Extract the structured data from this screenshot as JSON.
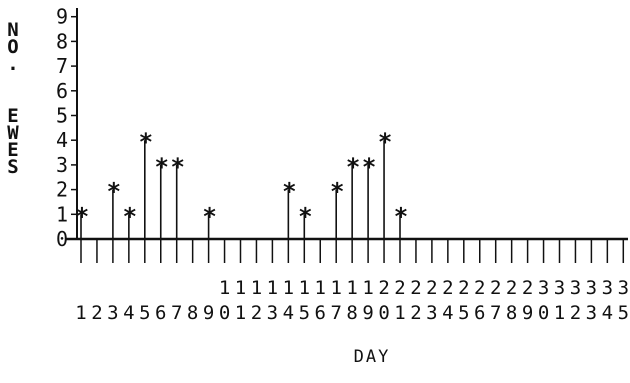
{
  "chart_data": {
    "type": "stem",
    "title": "",
    "xlabel": "DAY",
    "ylabel": "NO. EWES",
    "x": [
      1,
      2,
      3,
      4,
      5,
      6,
      7,
      8,
      9,
      10,
      11,
      12,
      13,
      14,
      15,
      16,
      17,
      18,
      19,
      20,
      21,
      22,
      23,
      24,
      25,
      26,
      27,
      28,
      29,
      30,
      31,
      32,
      33,
      34,
      35
    ],
    "values": [
      1,
      0,
      2,
      1,
      4,
      3,
      3,
      0,
      1,
      0,
      0,
      0,
      0,
      2,
      1,
      0,
      2,
      3,
      3,
      4,
      1,
      0,
      0,
      0,
      0,
      0,
      0,
      0,
      0,
      0,
      0,
      0,
      0,
      0,
      0
    ],
    "xlim": [
      1,
      35
    ],
    "ylim": [
      0,
      9
    ],
    "yticks": [
      0,
      1,
      2,
      3,
      4,
      5,
      6,
      7,
      8,
      9
    ],
    "xticks": [
      1,
      2,
      3,
      4,
      5,
      6,
      7,
      8,
      9,
      10,
      11,
      12,
      13,
      14,
      15,
      16,
      17,
      18,
      19,
      20,
      21,
      22,
      23,
      24,
      25,
      26,
      27,
      28,
      29,
      30,
      31,
      32,
      33,
      34,
      35
    ],
    "marker": "*",
    "grid": false,
    "legend": "none"
  }
}
